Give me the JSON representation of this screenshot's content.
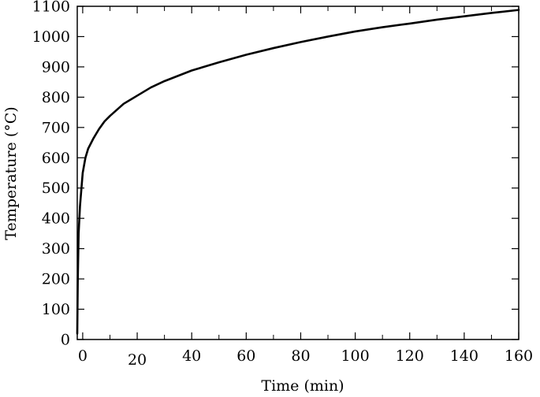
{
  "chart_data": {
    "type": "line",
    "title": "",
    "xlabel": "Time (min)",
    "ylabel": "Temperature (°C)",
    "xlim": [
      -2,
      160
    ],
    "ylim": [
      0,
      1100
    ],
    "xticks": [
      0,
      20,
      40,
      60,
      80,
      100,
      120,
      140,
      160
    ],
    "yticks": [
      0,
      100,
      200,
      300,
      400,
      500,
      600,
      700,
      800,
      900,
      1000,
      1100
    ],
    "grid": false,
    "legend": "none",
    "line_color": "#000000",
    "series": [
      {
        "x": [
          -2,
          -1.8,
          -1.5,
          -1,
          0,
          1,
          2,
          4,
          6,
          8,
          10,
          15,
          20,
          25,
          30,
          40,
          50,
          60,
          70,
          80,
          90,
          100,
          110,
          120,
          130,
          140,
          150,
          160
        ],
        "values": [
          20,
          200,
          350,
          440,
          550,
          600,
          630,
          665,
          695,
          720,
          738,
          778,
          805,
          832,
          853,
          888,
          915,
          940,
          962,
          982,
          1000,
          1017,
          1031,
          1043,
          1056,
          1067,
          1078,
          1088
        ]
      }
    ]
  }
}
